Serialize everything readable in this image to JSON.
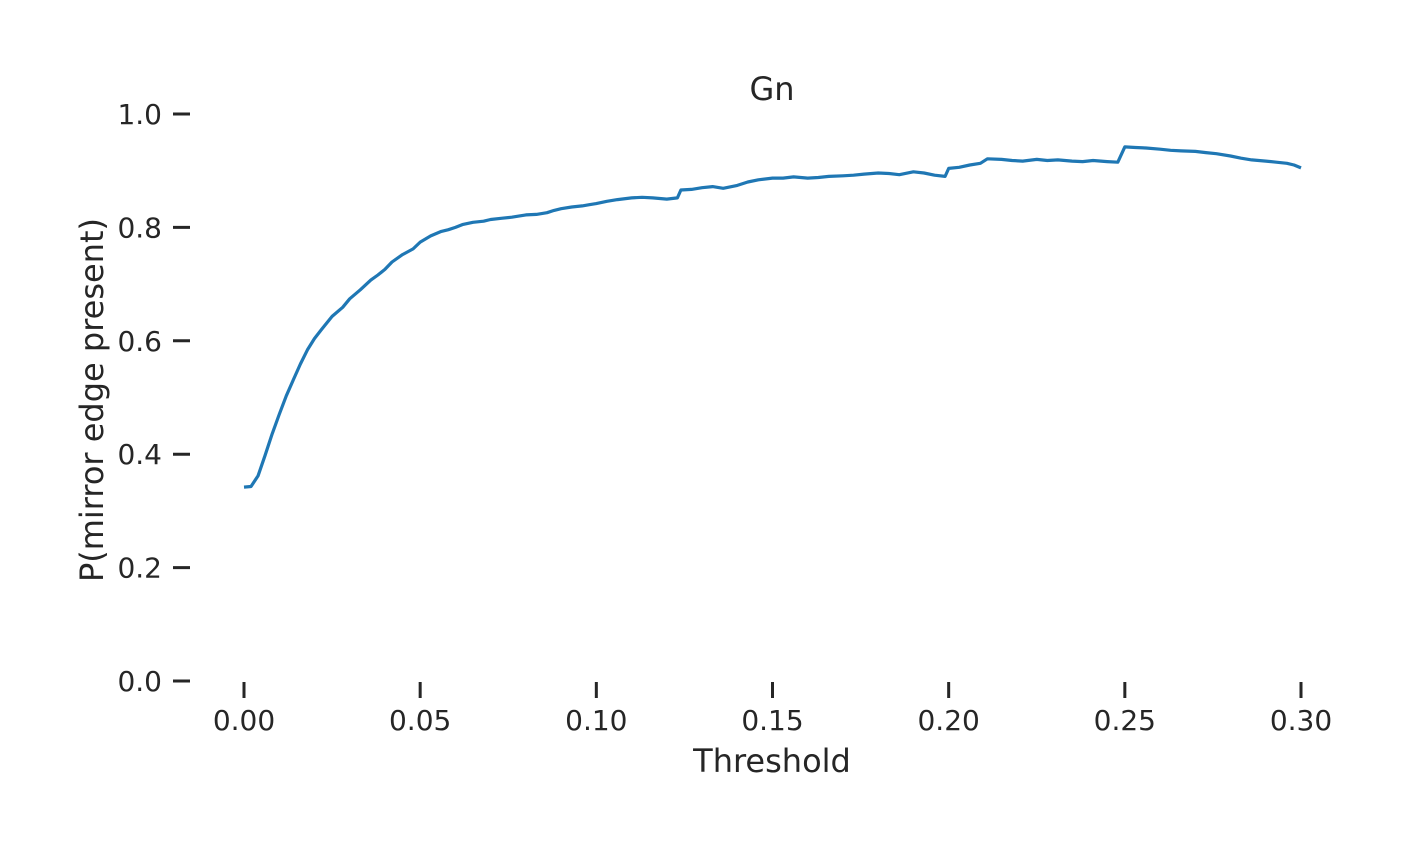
{
  "chart_data": {
    "type": "line",
    "title": "Gn",
    "xlabel": "Threshold",
    "ylabel": "P(mirror edge present)",
    "xlim": [
      0.0,
      0.3
    ],
    "ylim": [
      0.0,
      1.0
    ],
    "x_ticks": [
      "0.00",
      "0.05",
      "0.10",
      "0.15",
      "0.20",
      "0.25",
      "0.30"
    ],
    "y_ticks": [
      "0.0",
      "0.2",
      "0.4",
      "0.6",
      "0.8",
      "1.0"
    ],
    "grid": false,
    "color": "#1f77b4",
    "series": [
      {
        "x": [
          0.0,
          0.002,
          0.004,
          0.006,
          0.008,
          0.01,
          0.012,
          0.014,
          0.016,
          0.018,
          0.02,
          0.022,
          0.025,
          0.028,
          0.03,
          0.033,
          0.036,
          0.038,
          0.04,
          0.042,
          0.045,
          0.048,
          0.05,
          0.053,
          0.056,
          0.058,
          0.06,
          0.062,
          0.065,
          0.068,
          0.07,
          0.073,
          0.076,
          0.078,
          0.08,
          0.083,
          0.086,
          0.088,
          0.09,
          0.093,
          0.096,
          0.098,
          0.1,
          0.103,
          0.106,
          0.11,
          0.113,
          0.116,
          0.12,
          0.123,
          0.124,
          0.127,
          0.13,
          0.133,
          0.136,
          0.14,
          0.143,
          0.146,
          0.15,
          0.153,
          0.156,
          0.16,
          0.163,
          0.166,
          0.17,
          0.173,
          0.176,
          0.18,
          0.183,
          0.186,
          0.19,
          0.193,
          0.196,
          0.199,
          0.2,
          0.203,
          0.206,
          0.209,
          0.211,
          0.215,
          0.218,
          0.221,
          0.225,
          0.228,
          0.231,
          0.235,
          0.238,
          0.241,
          0.245,
          0.248,
          0.25,
          0.253,
          0.256,
          0.26,
          0.263,
          0.266,
          0.27,
          0.273,
          0.276,
          0.28,
          0.283,
          0.286,
          0.29,
          0.293,
          0.296,
          0.298,
          0.3
        ],
        "y": [
          0.342,
          0.343,
          0.362,
          0.398,
          0.436,
          0.47,
          0.503,
          0.531,
          0.559,
          0.584,
          0.604,
          0.62,
          0.643,
          0.659,
          0.674,
          0.69,
          0.707,
          0.716,
          0.726,
          0.739,
          0.752,
          0.762,
          0.774,
          0.785,
          0.793,
          0.796,
          0.8,
          0.805,
          0.809,
          0.811,
          0.814,
          0.816,
          0.818,
          0.82,
          0.822,
          0.823,
          0.826,
          0.83,
          0.833,
          0.836,
          0.838,
          0.84,
          0.842,
          0.846,
          0.849,
          0.852,
          0.853,
          0.852,
          0.85,
          0.852,
          0.866,
          0.867,
          0.87,
          0.872,
          0.869,
          0.874,
          0.88,
          0.884,
          0.887,
          0.887,
          0.889,
          0.887,
          0.888,
          0.89,
          0.891,
          0.892,
          0.894,
          0.896,
          0.895,
          0.893,
          0.898,
          0.896,
          0.892,
          0.89,
          0.904,
          0.906,
          0.91,
          0.913,
          0.921,
          0.92,
          0.918,
          0.917,
          0.92,
          0.918,
          0.919,
          0.917,
          0.916,
          0.918,
          0.916,
          0.915,
          0.942,
          0.941,
          0.94,
          0.938,
          0.936,
          0.935,
          0.934,
          0.932,
          0.93,
          0.926,
          0.922,
          0.919,
          0.917,
          0.915,
          0.913,
          0.91,
          0.905
        ]
      }
    ]
  }
}
